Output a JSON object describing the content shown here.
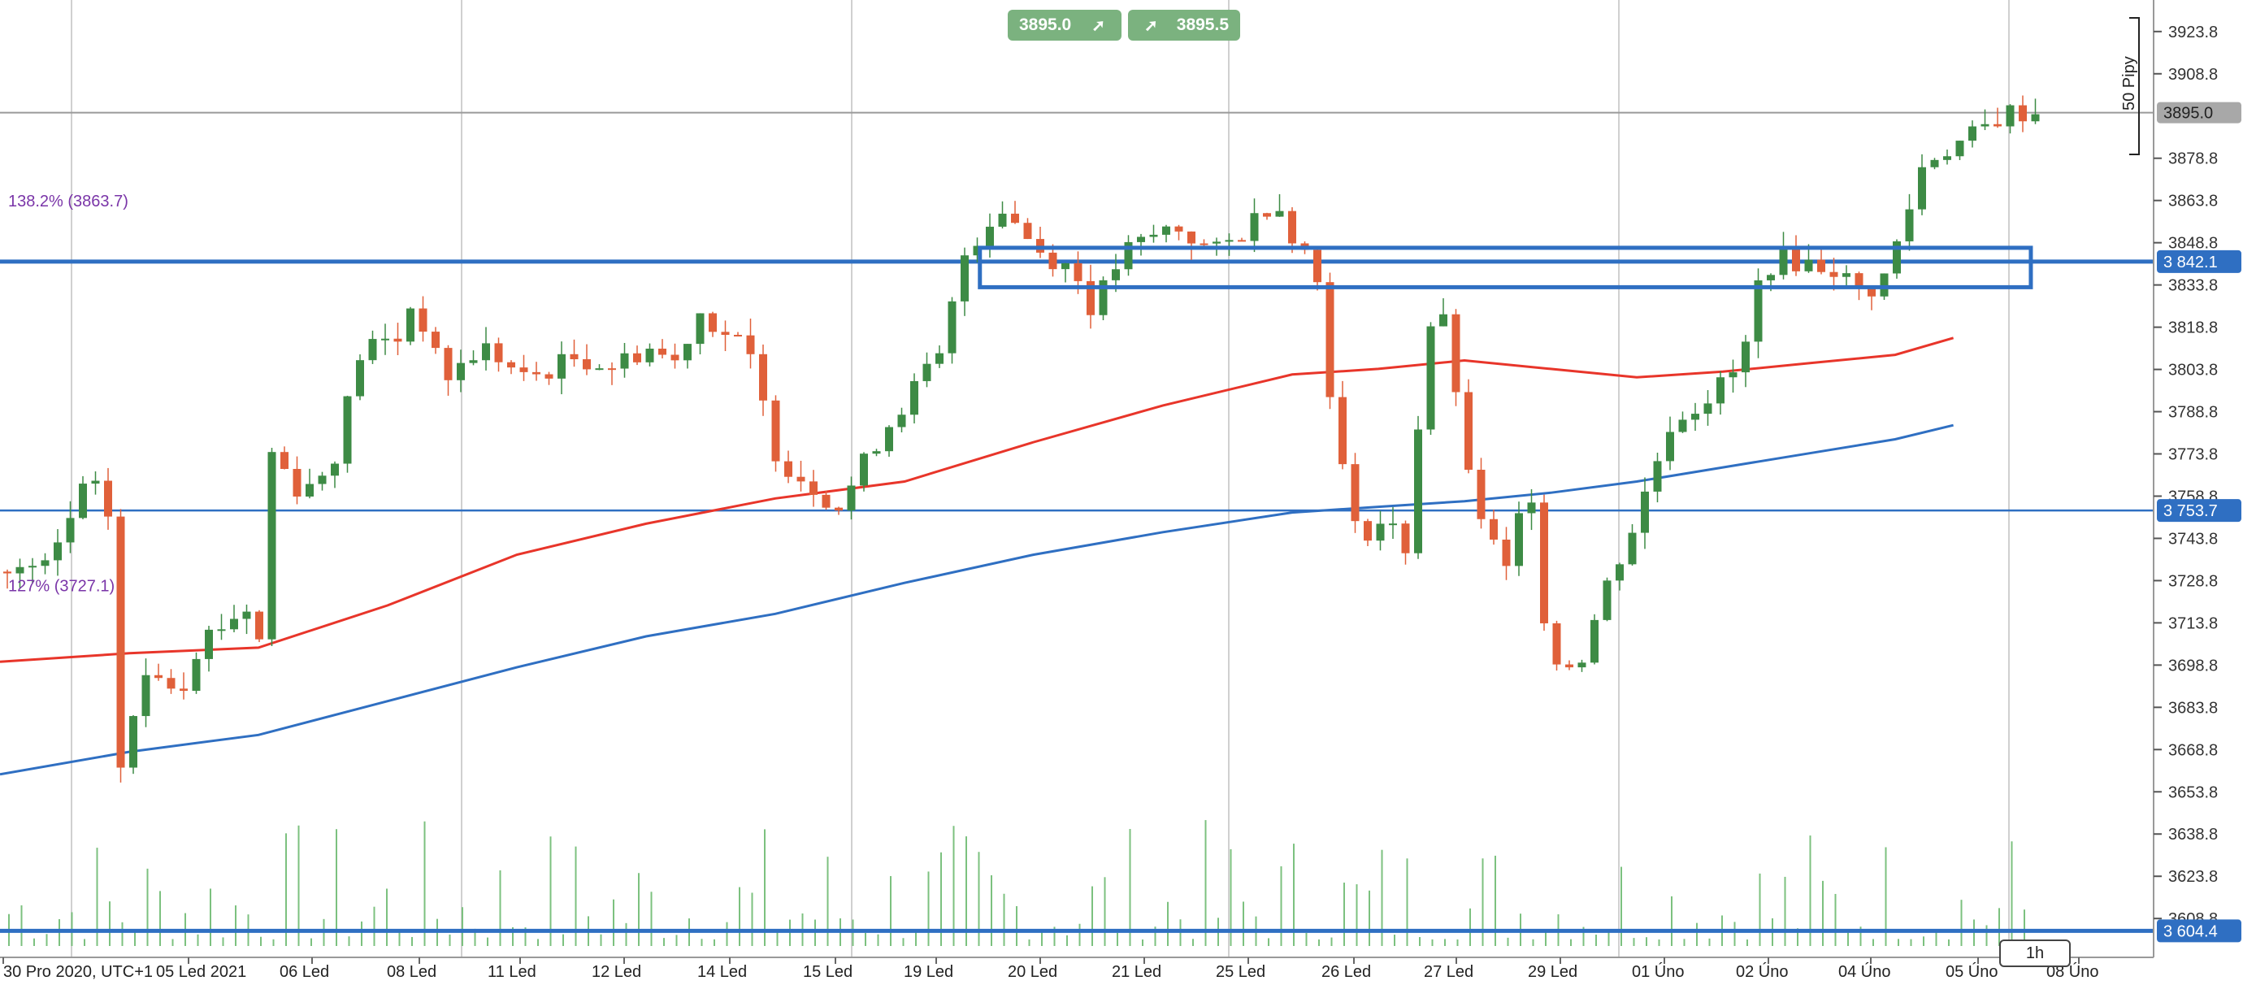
{
  "toolbar": {
    "sell_price": "3895.0",
    "buy_price": "3895.5",
    "timeframe": "1h"
  },
  "colors": {
    "bull": "#3d8b45",
    "bear": "#e0603a",
    "ma_fast": "#e8352a",
    "ma_slow": "#2f6fc2",
    "level": "#2f6fc2",
    "fib": "#7a35a8",
    "volume": "#7cc17f",
    "grid": "#d0d0d0"
  },
  "chart_data": {
    "type": "candlestick",
    "ylim": [
      3595,
      3935
    ],
    "y_ticks": [
      "3923.8",
      "3908.8",
      "3878.8",
      "3863.8",
      "3848.8",
      "3833.8",
      "3818.8",
      "3803.8",
      "3788.8",
      "3773.8",
      "3758.8",
      "3743.8",
      "3728.8",
      "3713.8",
      "3698.8",
      "3683.8",
      "3668.8",
      "3653.8",
      "3638.8",
      "3623.8",
      "3608.8"
    ],
    "x_labels": [
      "30 Pro 2020, UTC+1",
      "05 Led 2021",
      "06 Led",
      "08 Led",
      "11 Led",
      "12 Led",
      "14 Led",
      "15 Led",
      "19 Led",
      "20 Led",
      "21 Led",
      "25 Led",
      "26 Led",
      "27 Led",
      "29 Led",
      "01 Úno",
      "02 Úno",
      "04 Úno",
      "05 Úno",
      "08 Úno"
    ],
    "current_price": "3895.0",
    "pips_label": "50 Pipy",
    "levels": [
      {
        "label": "3 842.1",
        "value": 3842.1,
        "style": "thick"
      },
      {
        "label": "3 753.7",
        "value": 3753.7,
        "style": "thin"
      },
      {
        "label": "3 604.4",
        "value": 3604.4,
        "style": "thick"
      }
    ],
    "zone": {
      "from": 3833,
      "to": 3847,
      "x_start": 0.455,
      "x_end": 0.943
    },
    "fib_labels": [
      {
        "text": "138.2% (3863.7)",
        "value": 3863.7
      },
      {
        "text": "127% (3727.1)",
        "value": 3727.1
      }
    ],
    "ma_fast": [
      [
        0,
        3700
      ],
      [
        0.06,
        3703
      ],
      [
        0.12,
        3705
      ],
      [
        0.18,
        3720
      ],
      [
        0.24,
        3738
      ],
      [
        0.3,
        3749
      ],
      [
        0.36,
        3758
      ],
      [
        0.42,
        3764
      ],
      [
        0.48,
        3778
      ],
      [
        0.54,
        3791
      ],
      [
        0.6,
        3802
      ],
      [
        0.64,
        3804
      ],
      [
        0.68,
        3807
      ],
      [
        0.72,
        3804
      ],
      [
        0.76,
        3801
      ],
      [
        0.8,
        3803
      ],
      [
        0.84,
        3806
      ],
      [
        0.88,
        3809
      ],
      [
        0.907,
        3815
      ]
    ],
    "ma_slow": [
      [
        0,
        3660
      ],
      [
        0.06,
        3668
      ],
      [
        0.12,
        3674
      ],
      [
        0.18,
        3686
      ],
      [
        0.24,
        3698
      ],
      [
        0.3,
        3709
      ],
      [
        0.36,
        3717
      ],
      [
        0.42,
        3728
      ],
      [
        0.48,
        3738
      ],
      [
        0.54,
        3746
      ],
      [
        0.6,
        3753
      ],
      [
        0.64,
        3755
      ],
      [
        0.68,
        3757
      ],
      [
        0.72,
        3760
      ],
      [
        0.76,
        3764
      ],
      [
        0.8,
        3769
      ],
      [
        0.84,
        3774
      ],
      [
        0.88,
        3779
      ],
      [
        0.907,
        3784
      ]
    ]
  }
}
